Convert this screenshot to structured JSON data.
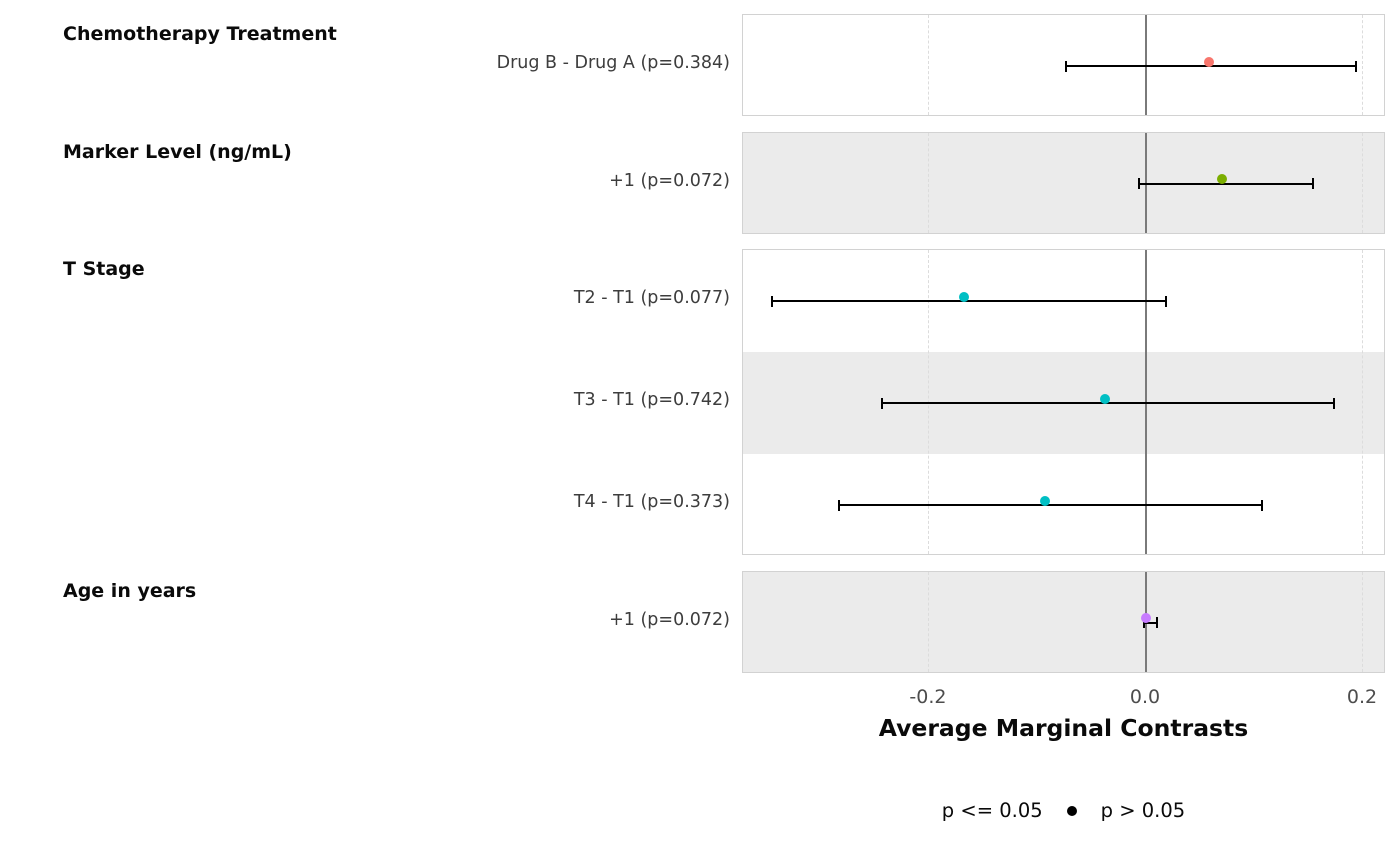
{
  "chart_data": {
    "type": "scatter",
    "subtype": "forest-plot",
    "title": "",
    "xlabel": "Average Marginal Contrasts",
    "ylabel": "",
    "xlim": [
      -0.3714,
      0.2212
    ],
    "grid": "dashed-verticals-at-ticks",
    "zero_reference_line": 0,
    "x_ticks": [
      {
        "value": -0.2,
        "label": "-0.2"
      },
      {
        "value": 0.0,
        "label": "0.0"
      },
      {
        "value": 0.2,
        "label": "0.2"
      }
    ],
    "legend": {
      "position": "bottom",
      "items": [
        {
          "label": "p <= 0.05",
          "shape": "filled-circle",
          "key_visible": false
        },
        {
          "label": "p > 0.05",
          "shape": "open-circle",
          "key_visible": true
        }
      ]
    },
    "groups": [
      {
        "title": "Chemotherapy Treatment",
        "rows": [
          {
            "label": "Drug B - Drug A (p=0.384)",
            "estimate": 0.062,
            "ci_low": -0.074,
            "ci_high": 0.194,
            "p_value": 0.384,
            "color": "#F8766D"
          }
        ]
      },
      {
        "title": "Marker Level (ng/mL)",
        "rows": [
          {
            "label": "+1 (p=0.072)",
            "estimate": 0.074,
            "ci_low": -0.006,
            "ci_high": 0.154,
            "p_value": 0.072,
            "color": "#7CAE00"
          }
        ]
      },
      {
        "title": "T Stage",
        "rows": [
          {
            "label": "T2 - T1 (p=0.077)",
            "estimate": -0.164,
            "ci_low": -0.345,
            "ci_high": 0.018,
            "p_value": 0.077,
            "color": "#00BFC4"
          },
          {
            "label": "T3 - T1 (p=0.742)",
            "estimate": -0.034,
            "ci_low": -0.243,
            "ci_high": 0.173,
            "p_value": 0.742,
            "color": "#00BFC4"
          },
          {
            "label": "T4 - T1 (p=0.373)",
            "estimate": -0.089,
            "ci_low": -0.283,
            "ci_high": 0.107,
            "p_value": 0.373,
            "color": "#00BFC4"
          }
        ]
      },
      {
        "title": "Age in years",
        "rows": [
          {
            "label": "+1 (p=0.072)",
            "estimate": 0.004,
            "ci_low": -0.002,
            "ci_high": 0.01,
            "p_value": 0.072,
            "color": "#C77CFF"
          }
        ]
      }
    ],
    "colors": {
      "stripe": "#ebebeb",
      "panel_border": "#d2d2d2",
      "zero_line": "#7a7a7a",
      "dashed_grid": "#dcdcdc",
      "errorbar": "#000000",
      "legend_key": "#000000"
    }
  }
}
